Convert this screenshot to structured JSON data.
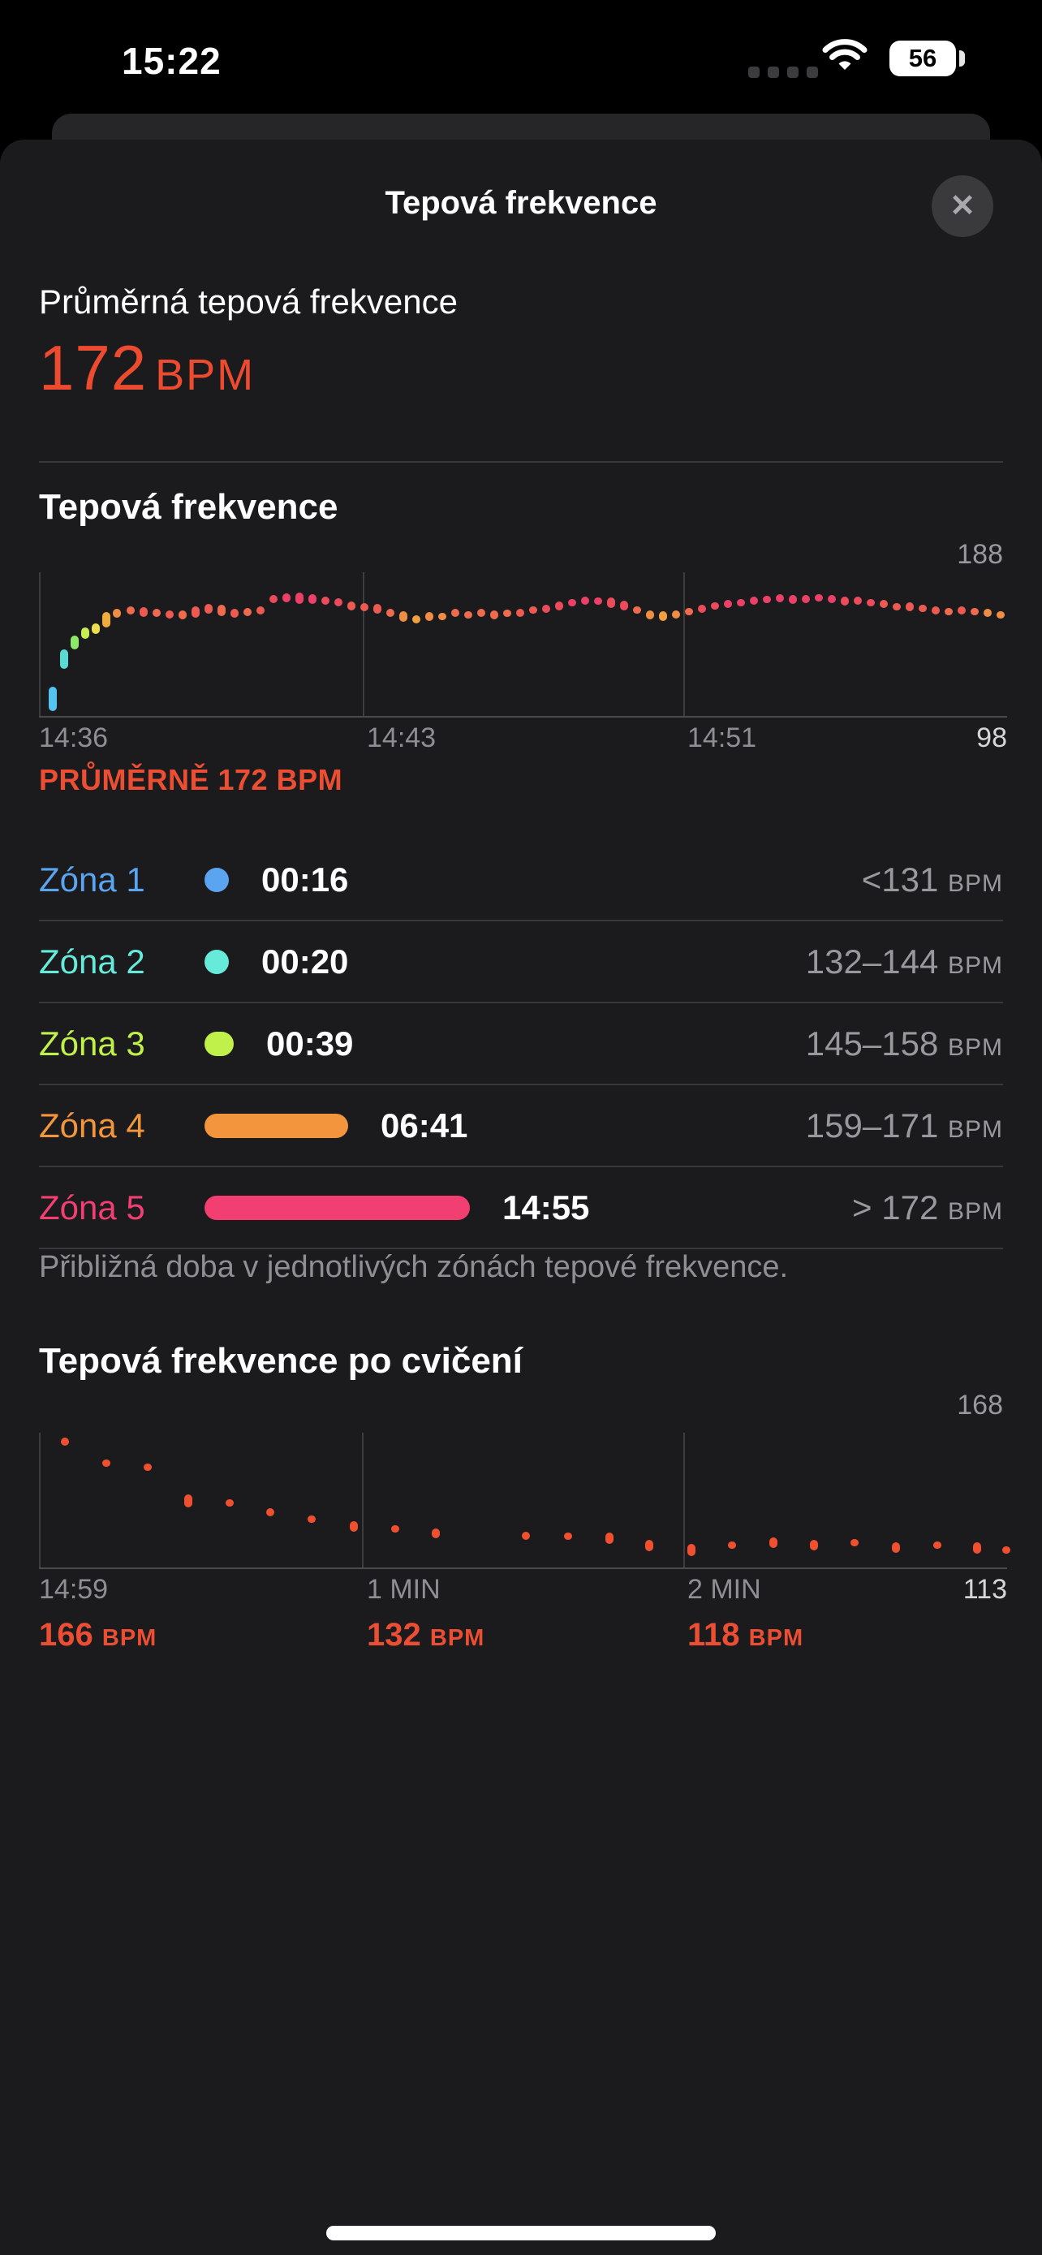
{
  "status_bar": {
    "time": "15:22",
    "battery_percent": "56"
  },
  "sheet": {
    "title": "Tepová frekvence",
    "close_glyph": "✕"
  },
  "summary": {
    "label": "Průměrná tepová frekvence",
    "value": "172",
    "unit": "BPM"
  },
  "hr_section": {
    "title": "Tepová frekvence",
    "y_max_label": "188",
    "y_min_label": "98",
    "x_tick_1": "14:36",
    "x_tick_2": "14:43",
    "x_tick_3": "14:51",
    "caption": "PRŮMĚRNĚ 172 BPM"
  },
  "zones": {
    "rows": [
      {
        "name": "Zóna 1",
        "color": "#5ba4f0",
        "bullet_px": 30,
        "duration": "00:16",
        "range": "<131",
        "unit": "BPM"
      },
      {
        "name": "Zóna 2",
        "color": "#66ead9",
        "bullet_px": 30,
        "duration": "00:20",
        "range": "132–144",
        "unit": "BPM"
      },
      {
        "name": "Zóna 3",
        "color": "#c0f04a",
        "bullet_px": 36,
        "duration": "00:39",
        "range": "145–158",
        "unit": "BPM"
      },
      {
        "name": "Zóna 4",
        "color": "#f2953d",
        "bullet_px": 177,
        "duration": "06:41",
        "range": "159–171",
        "unit": "BPM"
      },
      {
        "name": "Zóna 5",
        "color": "#f23e71",
        "bullet_px": 327,
        "duration": "14:55",
        "range": "> 172",
        "unit": "BPM"
      }
    ],
    "footnote": "Přibližná doba v jednotlivých zónách tepové frekvence."
  },
  "recovery_section": {
    "title": "Tepová frekvence po cvičení",
    "y_max_label": "168",
    "y_min_label": "113",
    "x_tick_1": "14:59",
    "x_tick_2": "1 MIN",
    "x_tick_3": "2 MIN",
    "values": [
      {
        "bpm": "166",
        "unit": "BPM"
      },
      {
        "bpm": "132",
        "unit": "BPM"
      },
      {
        "bpm": "118",
        "unit": "BPM"
      }
    ]
  },
  "accent_colors": {
    "workout_red": "#ed4b2f",
    "label_gray": "#8e8e93",
    "bright_gray": "#d6d6d9"
  },
  "chart_data": [
    {
      "id": "hr",
      "type": "scatter",
      "title": "Tepová frekvence",
      "xlabel_ticks": [
        "14:36",
        "14:43",
        "14:51"
      ],
      "ylim": [
        98,
        188
      ],
      "y_max": 188,
      "y_min": 98,
      "grid": "vertical-ticks",
      "units": "BPM",
      "average_bpm": 172,
      "points": [
        [
          60,
          109,
          30,
          "#55c3f0"
        ],
        [
          74,
          135,
          24,
          "#5bd9d3"
        ],
        [
          87,
          146,
          17,
          "#8dea67"
        ],
        [
          100,
          152,
          14,
          "#c6ee52"
        ],
        [
          113,
          155,
          13,
          "#ecdf4b"
        ],
        [
          126,
          161,
          19,
          "#f0ad3d"
        ],
        [
          139,
          165,
          11,
          "#f08d45"
        ],
        [
          156,
          167,
          10,
          "#ee6b4f"
        ],
        [
          172,
          166,
          12,
          "#ed5a52"
        ],
        [
          188,
          165,
          10,
          "#ee6b4f"
        ],
        [
          204,
          164,
          10,
          "#ed5a52"
        ],
        [
          220,
          164,
          11,
          "#ee6b4f"
        ],
        [
          236,
          166,
          14,
          "#ed5a52"
        ],
        [
          252,
          168,
          12,
          "#ed5a52"
        ],
        [
          268,
          167,
          14,
          "#ee6b4f"
        ],
        [
          284,
          165,
          11,
          "#ed5a52"
        ],
        [
          300,
          166,
          10,
          "#ee6b4f"
        ],
        [
          316,
          167,
          10,
          "#ed5a52"
        ],
        [
          332,
          174,
          10,
          "#ec4b5c"
        ],
        [
          348,
          175,
          11,
          "#eb4169"
        ],
        [
          364,
          175,
          14,
          "#eb4169"
        ],
        [
          380,
          174,
          12,
          "#eb4169"
        ],
        [
          396,
          173,
          10,
          "#ec4b5c"
        ],
        [
          412,
          172,
          10,
          "#ec4b5c"
        ],
        [
          428,
          170,
          11,
          "#ed5a52"
        ],
        [
          444,
          169,
          10,
          "#ed5a52"
        ],
        [
          460,
          168,
          12,
          "#ed5a52"
        ],
        [
          476,
          165,
          10,
          "#ee6b4f"
        ],
        [
          492,
          163,
          13,
          "#f08d45"
        ],
        [
          508,
          161,
          10,
          "#f0a03f"
        ],
        [
          524,
          163,
          11,
          "#f08d45"
        ],
        [
          540,
          163,
          9,
          "#f08d45"
        ],
        [
          556,
          165,
          10,
          "#ee6b4f"
        ],
        [
          572,
          164,
          9,
          "#ee6b4f"
        ],
        [
          588,
          165,
          10,
          "#ee6b4f"
        ],
        [
          604,
          164,
          11,
          "#ee6b4f"
        ],
        [
          620,
          165,
          9,
          "#ee6b4f"
        ],
        [
          636,
          165,
          10,
          "#ed5a52"
        ],
        [
          652,
          167,
          9,
          "#ed5a52"
        ],
        [
          668,
          168,
          10,
          "#ec4b5c"
        ],
        [
          684,
          170,
          11,
          "#ec4b5c"
        ],
        [
          700,
          172,
          9,
          "#eb4169"
        ],
        [
          716,
          173,
          10,
          "#eb4169"
        ],
        [
          732,
          173,
          9,
          "#eb4169"
        ],
        [
          748,
          172,
          13,
          "#ec4b5c"
        ],
        [
          764,
          170,
          12,
          "#ec4b5c"
        ],
        [
          780,
          167,
          9,
          "#ee6b4f"
        ],
        [
          796,
          164,
          11,
          "#f08d45"
        ],
        [
          812,
          163,
          12,
          "#f0a03f"
        ],
        [
          828,
          164,
          10,
          "#f08d45"
        ],
        [
          844,
          166,
          9,
          "#ee6b4f"
        ],
        [
          860,
          168,
          10,
          "#ec4b5c"
        ],
        [
          876,
          170,
          9,
          "#ec4b5c"
        ],
        [
          892,
          171,
          10,
          "#eb4169"
        ],
        [
          908,
          172,
          9,
          "#eb4169"
        ],
        [
          924,
          173,
          10,
          "#eb4169"
        ],
        [
          940,
          174,
          9,
          "#eb4169"
        ],
        [
          956,
          175,
          10,
          "#eb4169"
        ],
        [
          972,
          174,
          11,
          "#eb4169"
        ],
        [
          988,
          174,
          10,
          "#eb4169"
        ],
        [
          1004,
          175,
          9,
          "#eb4169"
        ],
        [
          1020,
          174,
          10,
          "#eb4169"
        ],
        [
          1036,
          173,
          11,
          "#ec4b5c"
        ],
        [
          1052,
          173,
          10,
          "#ec4b5c"
        ],
        [
          1068,
          172,
          9,
          "#ec4b5c"
        ],
        [
          1084,
          171,
          10,
          "#ed5a52"
        ],
        [
          1100,
          169,
          9,
          "#ed5a52"
        ],
        [
          1116,
          169,
          11,
          "#ed5a52"
        ],
        [
          1132,
          168,
          9,
          "#ed5a52"
        ],
        [
          1148,
          167,
          10,
          "#ed5a52"
        ],
        [
          1164,
          166,
          9,
          "#ee6b4f"
        ],
        [
          1180,
          167,
          10,
          "#ed5a52"
        ],
        [
          1196,
          166,
          9,
          "#ee6b4f"
        ],
        [
          1212,
          165,
          10,
          "#f08d45"
        ],
        [
          1228,
          164,
          9,
          "#f08d45"
        ]
      ]
    },
    {
      "id": "recovery",
      "type": "scatter",
      "title": "Tepová frekvence po cvičení",
      "xlabel_ticks": [
        "14:59",
        "1 MIN",
        "2 MIN"
      ],
      "ylim": [
        113,
        168
      ],
      "y_max": 168,
      "y_min": 113,
      "grid": "vertical-ticks",
      "units": "BPM",
      "recovery_values_bpm": [
        166,
        132,
        118
      ],
      "default_color": "#f04f30",
      "points": [
        [
          75,
          166,
          10
        ],
        [
          126,
          157,
          9
        ],
        [
          177,
          155,
          9
        ],
        [
          227,
          141,
          16
        ],
        [
          278,
          140,
          9
        ],
        [
          328,
          136,
          10
        ],
        [
          379,
          133,
          9
        ],
        [
          431,
          130,
          13
        ],
        [
          482,
          129,
          9
        ],
        [
          532,
          127,
          12
        ],
        [
          643,
          126,
          10
        ],
        [
          695,
          126,
          9
        ],
        [
          746,
          125,
          14
        ],
        [
          795,
          122,
          14
        ],
        [
          847,
          120,
          15
        ],
        [
          897,
          122,
          9
        ],
        [
          948,
          123,
          13
        ],
        [
          998,
          122,
          13
        ],
        [
          1048,
          123,
          9
        ],
        [
          1099,
          121,
          13
        ],
        [
          1150,
          122,
          9
        ],
        [
          1199,
          121,
          14
        ],
        [
          1235,
          120,
          9
        ]
      ]
    }
  ]
}
